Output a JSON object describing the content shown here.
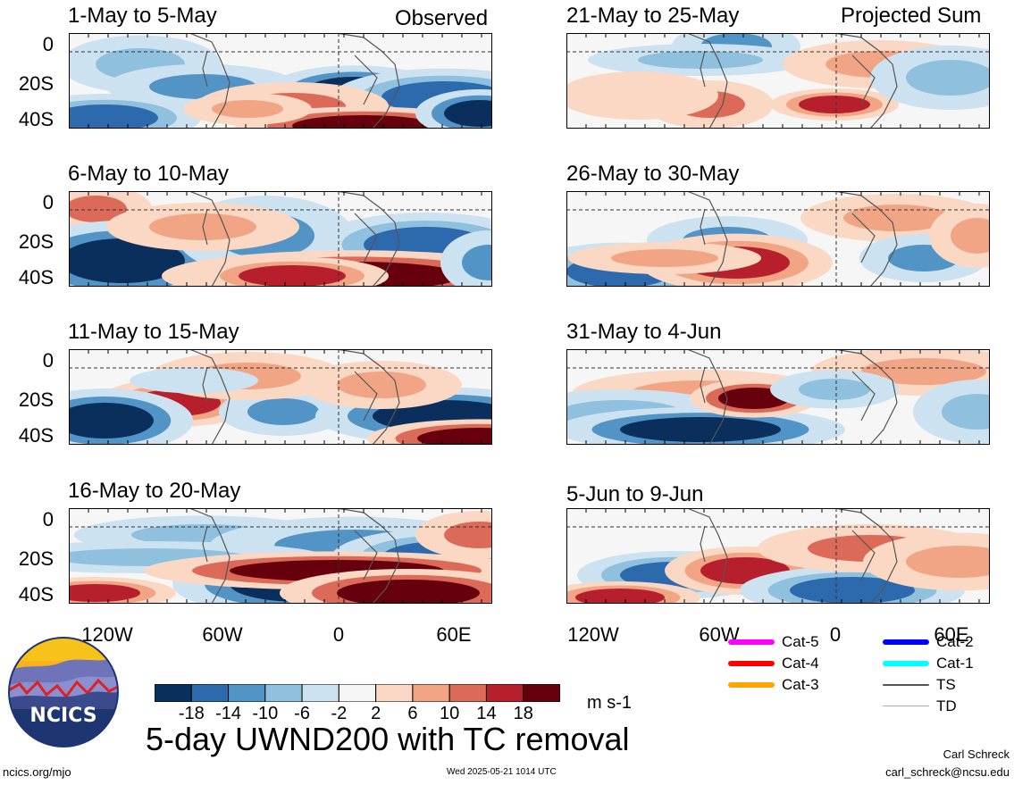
{
  "header": {
    "left_label": "Observed",
    "right_label": "Projected Sum"
  },
  "panels_left": [
    {
      "date_range": "1-May to 5-May"
    },
    {
      "date_range": "6-May to 10-May"
    },
    {
      "date_range": "11-May to 15-May"
    },
    {
      "date_range": "16-May to 20-May"
    }
  ],
  "panels_right": [
    {
      "date_range": "21-May to 25-May"
    },
    {
      "date_range": "26-May to 30-May"
    },
    {
      "date_range": "31-May to 4-Jun"
    },
    {
      "date_range": "5-Jun to 9-Jun"
    }
  ],
  "y_ticks": [
    "0",
    "20S",
    "40S"
  ],
  "x_ticks": [
    "120W",
    "60W",
    "0",
    "60E"
  ],
  "colorbar": {
    "colors": [
      "#0b2f5c",
      "#2d69ad",
      "#5294c6",
      "#8fc0de",
      "#cde2f0",
      "#f6f6f6",
      "#fbd8c3",
      "#f2a585",
      "#dc6a58",
      "#b71f2d",
      "#67000d"
    ],
    "labels": [
      "-18",
      "-14",
      "-10",
      "-6",
      "-2",
      "2",
      "6",
      "10",
      "14",
      "18"
    ],
    "units": "m s-1"
  },
  "legend": [
    {
      "label": "Cat-5",
      "color": "#ff00ff"
    },
    {
      "label": "Cat-4",
      "color": "#ff0000"
    },
    {
      "label": "Cat-3",
      "color": "#ffa500"
    },
    {
      "label": "Cat-2",
      "color": "#0000ff"
    },
    {
      "label": "Cat-1",
      "color": "#00ffff"
    },
    {
      "label": "TS",
      "color": "#555555"
    },
    {
      "label": "TD",
      "color": "#aaaaaa"
    }
  ],
  "logo": {
    "text": "NCICS"
  },
  "title": "5-day UWND200 with TC removal",
  "footer": {
    "url": "ncics.org/mjo",
    "timestamp": "Wed 2025-05-21 1014 UTC",
    "author": "Carl Schreck",
    "email": "carl_schreck@ncsu.edu"
  }
}
